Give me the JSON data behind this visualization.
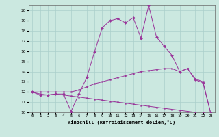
{
  "xlabel": "Windchill (Refroidissement éolien,°C)",
  "bg_color": "#cbe8e0",
  "grid_color": "#aacfcb",
  "line_color": "#993399",
  "x": [
    0,
    1,
    2,
    3,
    4,
    5,
    6,
    7,
    8,
    9,
    10,
    11,
    12,
    13,
    14,
    15,
    16,
    17,
    18,
    19,
    20,
    21,
    22,
    23
  ],
  "line1": [
    12,
    11.7,
    11.7,
    11.8,
    11.8,
    10.1,
    11.8,
    13.4,
    15.9,
    18.3,
    19.0,
    19.2,
    18.8,
    19.3,
    17.3,
    20.5,
    17.4,
    16.5,
    15.6,
    14.0,
    14.3,
    13.2,
    12.9,
    9.9
  ],
  "line2": [
    12,
    12,
    12,
    12,
    12,
    12,
    12.2,
    12.5,
    12.8,
    13.0,
    13.2,
    13.4,
    13.6,
    13.8,
    14.0,
    14.1,
    14.2,
    14.3,
    14.3,
    14.0,
    14.3,
    13.3,
    13.0,
    9.9
  ],
  "line3": [
    12,
    11.8,
    11.7,
    11.8,
    11.7,
    11.6,
    11.5,
    11.4,
    11.3,
    11.2,
    11.1,
    11.0,
    10.9,
    10.8,
    10.7,
    10.6,
    10.5,
    10.4,
    10.3,
    10.2,
    10.1,
    10.0,
    10.0,
    9.9
  ],
  "xlim": [
    -0.5,
    23.5
  ],
  "ylim": [
    10,
    20.5
  ],
  "yticks": [
    10,
    11,
    12,
    13,
    14,
    15,
    16,
    17,
    18,
    19,
    20
  ],
  "xticks": [
    0,
    1,
    2,
    3,
    4,
    5,
    6,
    7,
    8,
    9,
    10,
    11,
    12,
    13,
    14,
    15,
    16,
    17,
    18,
    19,
    20,
    21,
    22,
    23
  ]
}
